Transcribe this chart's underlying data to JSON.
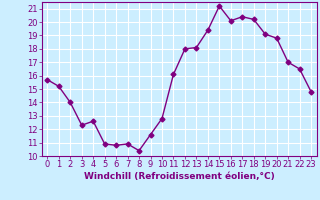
{
  "x": [
    0,
    1,
    2,
    3,
    4,
    5,
    6,
    7,
    8,
    9,
    10,
    11,
    12,
    13,
    14,
    15,
    16,
    17,
    18,
    19,
    20,
    21,
    22,
    23
  ],
  "y": [
    15.7,
    15.2,
    14.0,
    12.3,
    12.6,
    10.9,
    10.8,
    10.9,
    10.4,
    11.6,
    12.8,
    16.1,
    18.0,
    18.1,
    19.4,
    21.2,
    20.1,
    20.4,
    20.2,
    19.1,
    18.8,
    17.0,
    16.5,
    14.8
  ],
  "line_color": "#800080",
  "marker": "D",
  "markersize": 2.5,
  "linewidth": 1.0,
  "xlabel": "Windchill (Refroidissement éolien,°C)",
  "ylabel": "",
  "xlim": [
    -0.5,
    23.5
  ],
  "ylim": [
    10,
    21.5
  ],
  "yticks": [
    10,
    11,
    12,
    13,
    14,
    15,
    16,
    17,
    18,
    19,
    20,
    21
  ],
  "xticks": [
    0,
    1,
    2,
    3,
    4,
    5,
    6,
    7,
    8,
    9,
    10,
    11,
    12,
    13,
    14,
    15,
    16,
    17,
    18,
    19,
    20,
    21,
    22,
    23
  ],
  "bg_color": "#cceeff",
  "grid_color": "#ffffff",
  "line_bg": "#cceeff",
  "xlabel_color": "#800080",
  "tick_color": "#800080",
  "xlabel_fontsize": 6.5,
  "tick_fontsize": 6.0
}
